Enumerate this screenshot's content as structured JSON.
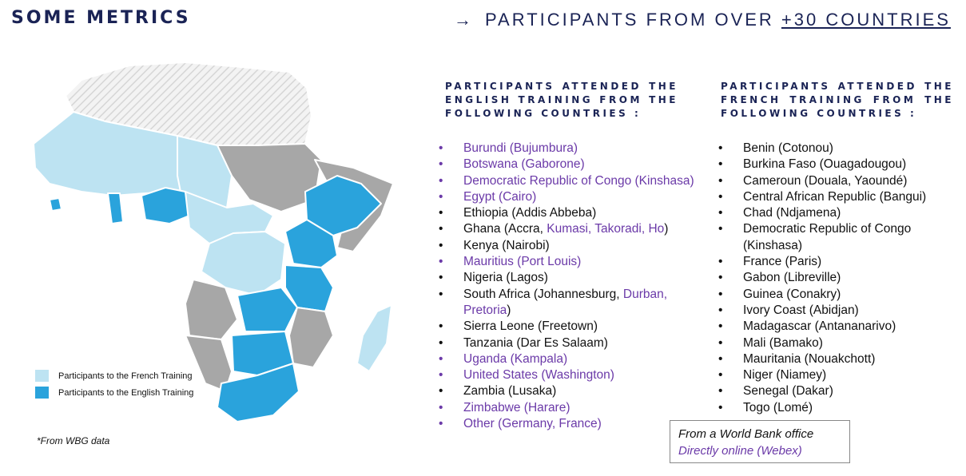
{
  "header": {
    "left_title": "SOME METRICS",
    "right_title_prefix": "PARTICIPANTS FROM OVER ",
    "right_title_highlight": "+30 COUNTRIES"
  },
  "legend": {
    "french_label": "Participants to the French Training",
    "english_label": "Participants to the English Training",
    "french_color": "#bde3f2",
    "english_color": "#2aa3dc",
    "other_color": "#a7a7a7"
  },
  "footnote": "*From WBG data",
  "english_column": {
    "heading": "PARTICIPANTS ATTENDED THE ENGLISH TRAINING FROM THE FOLLOWING COUNTRIES :",
    "items": [
      {
        "text": "Burundi (Bujumbura)",
        "color": "purple"
      },
      {
        "text": "Botswana (Gaborone)",
        "color": "purple"
      },
      {
        "text": "Democratic Republic of Congo (Kinshasa)",
        "color": "purple"
      },
      {
        "text": "Egypt (Cairo)",
        "color": "purple"
      },
      {
        "text": "Ethiopia (Addis Abbeba)",
        "color": "black"
      },
      {
        "text": "Ghana (Accra, ",
        "extra": "Kumasi, Takoradi, Ho",
        "tail": ")",
        "color": "black"
      },
      {
        "text": "Kenya (Nairobi)",
        "color": "black"
      },
      {
        "text": "Mauritius (Port Louis)",
        "color": "purple"
      },
      {
        "text": "Nigeria (Lagos)",
        "color": "black"
      },
      {
        "text": "South Africa (Johannesburg, ",
        "extra": "Durban, Pretoria",
        "tail": ")",
        "color": "black"
      },
      {
        "text": "Sierra Leone (Freetown)",
        "color": "black"
      },
      {
        "text": "Tanzania (Dar Es Salaam)",
        "color": "black"
      },
      {
        "text": "Uganda (Kampala)",
        "color": "purple"
      },
      {
        "text": "United States (Washington)",
        "color": "purple"
      },
      {
        "text": "Zambia (Lusaka)",
        "color": "black"
      },
      {
        "text": "Zimbabwe (Harare)",
        "color": "purple"
      },
      {
        "text": "Other (Germany, France)",
        "color": "purple"
      }
    ]
  },
  "french_column": {
    "heading": "PARTICIPANTS ATTENDED THE FRENCH TRAINING FROM THE FOLLOWING COUNTRIES :",
    "items": [
      {
        "text": "Benin (Cotonou)",
        "color": "black"
      },
      {
        "text": "Burkina Faso (Ouagadougou)",
        "color": "black"
      },
      {
        "text": "Cameroun (Douala, Yaoundé)",
        "color": "black"
      },
      {
        "text": "Central African Republic (Bangui)",
        "color": "black"
      },
      {
        "text": "Chad (Ndjamena)",
        "color": "black"
      },
      {
        "text": "Democratic Republic of Congo (Kinshasa)",
        "color": "black"
      },
      {
        "text": "France (Paris)",
        "color": "black"
      },
      {
        "text": "Gabon (Libreville)",
        "color": "black"
      },
      {
        "text": "Guinea (Conakry)",
        "color": "black"
      },
      {
        "text": "Ivory Coast (Abidjan)",
        "color": "black"
      },
      {
        "text": "Madagascar (Antananarivo)",
        "color": "black"
      },
      {
        "text": "Mali (Bamako)",
        "color": "black"
      },
      {
        "text": "Mauritania (Nouakchott)",
        "color": "black"
      },
      {
        "text": "Niger (Niamey)",
        "color": "black"
      },
      {
        "text": "Senegal (Dakar)",
        "color": "black"
      },
      {
        "text": "Togo (Lomé)",
        "color": "black"
      }
    ]
  },
  "note_box": {
    "line1": "From a World Bank office",
    "line2": "Directly online (Webex)"
  }
}
